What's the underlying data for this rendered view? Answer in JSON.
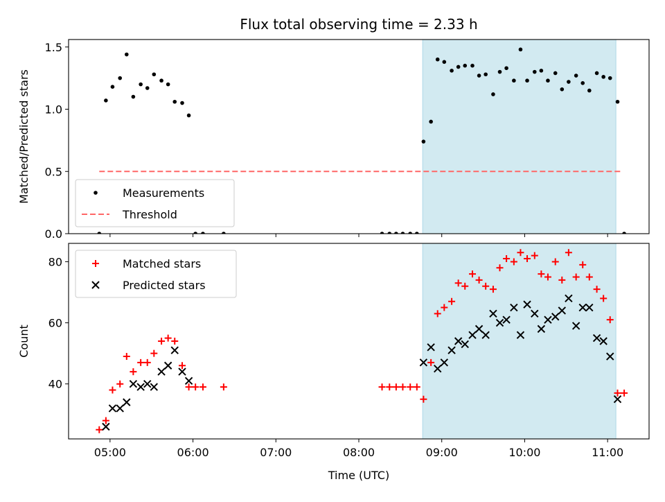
{
  "figure": {
    "title": "Flux total observing time = 2.33 h"
  },
  "chart_data": [
    {
      "type": "scatter",
      "ylabel": "Matched/Predicted stars",
      "ylim": [
        0,
        1.56
      ],
      "yticks": [
        0.0,
        0.5,
        1.0,
        1.5
      ],
      "ytick_labels": [
        "0.0",
        "0.5",
        "1.0",
        "1.5"
      ],
      "shaded_region": {
        "x": [
          8.77,
          11.1
        ],
        "color": "#add8e6"
      },
      "legend": {
        "position": "lower-left"
      },
      "series": [
        {
          "name": "Measurements",
          "color": "#000000",
          "marker": "dot",
          "points": [
            [
              4.87,
              0.0
            ],
            [
              4.95,
              1.07
            ],
            [
              5.03,
              1.18
            ],
            [
              5.12,
              1.25
            ],
            [
              5.2,
              1.44
            ],
            [
              5.28,
              1.1
            ],
            [
              5.37,
              1.2
            ],
            [
              5.45,
              1.17
            ],
            [
              5.53,
              1.28
            ],
            [
              5.62,
              1.23
            ],
            [
              5.7,
              1.2
            ],
            [
              5.78,
              1.06
            ],
            [
              5.87,
              1.05
            ],
            [
              5.95,
              0.95
            ],
            [
              6.03,
              0.0
            ],
            [
              6.12,
              0.0
            ],
            [
              6.37,
              0.0
            ],
            [
              8.28,
              0.0
            ],
            [
              8.37,
              0.0
            ],
            [
              8.45,
              0.0
            ],
            [
              8.53,
              0.0
            ],
            [
              8.62,
              0.0
            ],
            [
              8.7,
              0.0
            ],
            [
              8.78,
              0.74
            ],
            [
              8.87,
              0.9
            ],
            [
              8.95,
              1.4
            ],
            [
              9.03,
              1.38
            ],
            [
              9.12,
              1.31
            ],
            [
              9.2,
              1.34
            ],
            [
              9.28,
              1.35
            ],
            [
              9.37,
              1.35
            ],
            [
              9.45,
              1.27
            ],
            [
              9.53,
              1.28
            ],
            [
              9.62,
              1.12
            ],
            [
              9.7,
              1.3
            ],
            [
              9.78,
              1.33
            ],
            [
              9.87,
              1.23
            ],
            [
              9.95,
              1.48
            ],
            [
              10.03,
              1.23
            ],
            [
              10.12,
              1.3
            ],
            [
              10.2,
              1.31
            ],
            [
              10.28,
              1.23
            ],
            [
              10.37,
              1.29
            ],
            [
              10.45,
              1.16
            ],
            [
              10.53,
              1.22
            ],
            [
              10.62,
              1.27
            ],
            [
              10.7,
              1.21
            ],
            [
              10.78,
              1.15
            ],
            [
              10.87,
              1.29
            ],
            [
              10.95,
              1.26
            ],
            [
              11.03,
              1.25
            ],
            [
              11.12,
              1.06
            ],
            [
              11.2,
              0.0
            ]
          ]
        },
        {
          "name": "Threshold",
          "color": "#ff6666",
          "style": "dashed",
          "x": [
            4.87,
            11.17
          ],
          "y": [
            0.5,
            0.5
          ]
        }
      ]
    },
    {
      "type": "scatter",
      "ylabel": "Count",
      "xlabel": "Time (UTC)",
      "ylim": [
        22,
        86
      ],
      "yticks": [
        40,
        60,
        80
      ],
      "ytick_labels": [
        "40",
        "60",
        "80"
      ],
      "xlim": [
        4.5,
        11.5
      ],
      "xticks": [
        5,
        6,
        7,
        8,
        9,
        10,
        11
      ],
      "xtick_labels": [
        "05:00",
        "06:00",
        "07:00",
        "08:00",
        "09:00",
        "10:00",
        "11:00"
      ],
      "shaded_region": {
        "x": [
          8.77,
          11.1
        ],
        "color": "#add8e6"
      },
      "legend": {
        "position": "upper-left"
      },
      "series": [
        {
          "name": "Matched stars",
          "color": "#ff0000",
          "marker": "plus",
          "points": [
            [
              4.87,
              25
            ],
            [
              4.95,
              28
            ],
            [
              5.03,
              38
            ],
            [
              5.12,
              40
            ],
            [
              5.2,
              49
            ],
            [
              5.28,
              44
            ],
            [
              5.37,
              47
            ],
            [
              5.45,
              47
            ],
            [
              5.53,
              50
            ],
            [
              5.62,
              54
            ],
            [
              5.7,
              55
            ],
            [
              5.78,
              54
            ],
            [
              5.87,
              46
            ],
            [
              5.95,
              39
            ],
            [
              6.03,
              39
            ],
            [
              6.12,
              39
            ],
            [
              6.37,
              39
            ],
            [
              8.28,
              39
            ],
            [
              8.37,
              39
            ],
            [
              8.45,
              39
            ],
            [
              8.53,
              39
            ],
            [
              8.62,
              39
            ],
            [
              8.7,
              39
            ],
            [
              8.78,
              35
            ],
            [
              8.87,
              47
            ],
            [
              8.95,
              63
            ],
            [
              9.03,
              65
            ],
            [
              9.12,
              67
            ],
            [
              9.2,
              73
            ],
            [
              9.28,
              72
            ],
            [
              9.37,
              76
            ],
            [
              9.45,
              74
            ],
            [
              9.53,
              72
            ],
            [
              9.62,
              71
            ],
            [
              9.7,
              78
            ],
            [
              9.78,
              81
            ],
            [
              9.87,
              80
            ],
            [
              9.95,
              83
            ],
            [
              10.03,
              81
            ],
            [
              10.12,
              82
            ],
            [
              10.2,
              76
            ],
            [
              10.28,
              75
            ],
            [
              10.37,
              80
            ],
            [
              10.45,
              74
            ],
            [
              10.53,
              83
            ],
            [
              10.62,
              75
            ],
            [
              10.7,
              79
            ],
            [
              10.78,
              75
            ],
            [
              10.87,
              71
            ],
            [
              10.95,
              68
            ],
            [
              11.03,
              61
            ],
            [
              11.12,
              37
            ],
            [
              11.2,
              37
            ]
          ]
        },
        {
          "name": "Predicted stars",
          "color": "#000000",
          "marker": "x",
          "points": [
            [
              4.95,
              26
            ],
            [
              5.03,
              32
            ],
            [
              5.12,
              32
            ],
            [
              5.2,
              34
            ],
            [
              5.28,
              40
            ],
            [
              5.37,
              39
            ],
            [
              5.45,
              40
            ],
            [
              5.53,
              39
            ],
            [
              5.62,
              44
            ],
            [
              5.7,
              46
            ],
            [
              5.78,
              51
            ],
            [
              5.87,
              44
            ],
            [
              5.95,
              41
            ],
            [
              8.78,
              47
            ],
            [
              8.87,
              52
            ],
            [
              8.95,
              45
            ],
            [
              9.03,
              47
            ],
            [
              9.12,
              51
            ],
            [
              9.2,
              54
            ],
            [
              9.28,
              53
            ],
            [
              9.37,
              56
            ],
            [
              9.45,
              58
            ],
            [
              9.53,
              56
            ],
            [
              9.62,
              63
            ],
            [
              9.7,
              60
            ],
            [
              9.78,
              61
            ],
            [
              9.87,
              65
            ],
            [
              9.95,
              56
            ],
            [
              10.03,
              66
            ],
            [
              10.12,
              63
            ],
            [
              10.2,
              58
            ],
            [
              10.28,
              61
            ],
            [
              10.37,
              62
            ],
            [
              10.45,
              64
            ],
            [
              10.53,
              68
            ],
            [
              10.62,
              59
            ],
            [
              10.7,
              65
            ],
            [
              10.78,
              65
            ],
            [
              10.87,
              55
            ],
            [
              10.95,
              54
            ],
            [
              11.03,
              49
            ],
            [
              11.12,
              35
            ]
          ]
        }
      ]
    }
  ]
}
